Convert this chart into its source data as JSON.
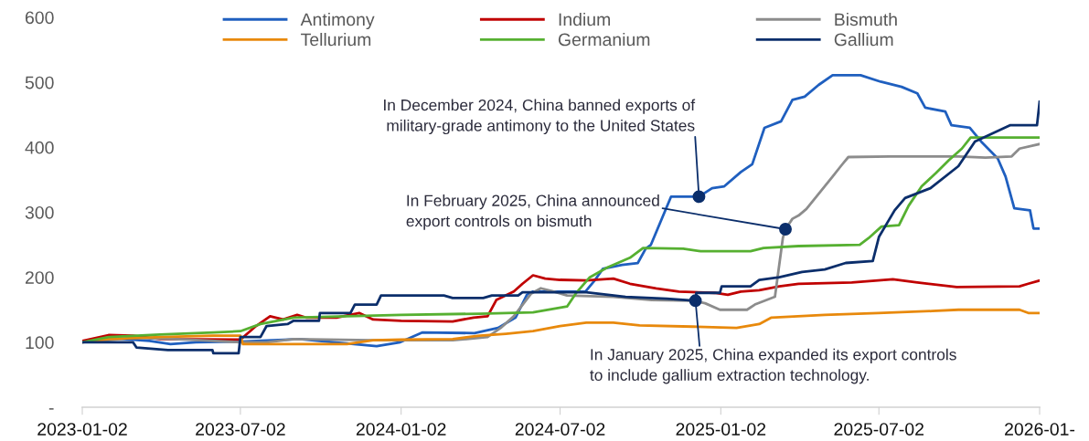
{
  "chart_data": {
    "type": "line",
    "ylim": [
      0,
      600
    ],
    "yticks": [
      {
        "value": 0,
        "label": "-"
      },
      100,
      200,
      300,
      400,
      500,
      600
    ],
    "xlim": [
      "2023-01-02",
      "2026-01-02"
    ],
    "xticks": [
      {
        "value": "2023-01-02",
        "label": "2023-01-02"
      },
      {
        "value": "2023-07-02",
        "label": "2023-07-02"
      },
      {
        "value": "2024-01-02",
        "label": "2024-01-02"
      },
      {
        "value": "2024-07-02",
        "label": "2024-07-02"
      },
      {
        "value": "2025-01-02",
        "label": "2025-01-02"
      },
      {
        "value": "2025-07-02",
        "label": "2025-07-02"
      },
      {
        "value": "2026-01-02",
        "label": "2026-01-"
      }
    ],
    "grid": false,
    "legend": "top",
    "marker": "none",
    "line_style": "solid",
    "series": [
      {
        "name": "Antimony",
        "color": "#1f5fbf",
        "x": [
          "2023-01-02",
          "2023-01-28",
          "2023-03-20",
          "2023-04-13",
          "2023-05-12",
          "2023-07-02",
          "2023-09-08",
          "2023-10-17",
          "2023-12-05",
          "2024-01-01",
          "2024-01-26",
          "2024-03-26",
          "2024-04-22",
          "2024-05-12",
          "2024-05-25",
          "2024-06-01",
          "2024-07-31",
          "2024-08-10",
          "2024-08-20",
          "2024-09-11",
          "2024-09-29",
          "2024-10-08",
          "2024-10-14",
          "2024-11-06",
          "2024-12-08",
          "2024-12-23",
          "2025-01-06",
          "2025-01-25",
          "2025-02-07",
          "2025-02-21",
          "2025-03-12",
          "2025-03-25",
          "2025-04-08",
          "2025-04-24",
          "2025-05-10",
          "2025-06-11",
          "2025-07-04",
          "2025-07-28",
          "2025-08-15",
          "2025-08-24",
          "2025-09-16",
          "2025-09-23",
          "2025-10-14",
          "2025-10-27",
          "2025-11-15",
          "2025-11-24",
          "2025-12-04",
          "2025-12-22",
          "2025-12-26",
          "2026-01-02"
        ],
        "values": [
          100,
          107,
          102,
          97,
          100,
          101,
          105,
          100,
          94,
          100,
          115,
          114,
          122,
          138,
          173,
          178,
          178,
          194,
          213,
          219,
          222,
          244,
          250,
          324,
          324,
          337,
          340,
          362,
          374,
          430,
          440,
          473,
          478,
          496,
          511,
          511,
          501,
          493,
          483,
          461,
          455,
          434,
          430,
          409,
          383,
          355,
          306,
          303,
          275,
          275
        ]
      },
      {
        "name": "Indium",
        "color": "#c00000",
        "x": [
          "2023-01-02",
          "2023-02-01",
          "2023-03-01",
          "2023-04-01",
          "2023-07-02",
          "2023-07-20",
          "2023-08-05",
          "2023-08-20",
          "2023-09-05",
          "2023-09-15",
          "2023-10-20",
          "2023-11-15",
          "2023-12-01",
          "2024-01-02",
          "2024-03-01",
          "2024-03-25",
          "2024-04-10",
          "2024-04-20",
          "2024-05-10",
          "2024-05-20",
          "2024-06-01",
          "2024-06-15",
          "2024-07-02",
          "2024-08-01",
          "2024-09-01",
          "2024-09-20",
          "2024-10-20",
          "2024-11-15",
          "2024-12-26",
          "2025-01-10",
          "2025-01-25",
          "2025-02-15",
          "2025-03-10",
          "2025-04-01",
          "2025-06-01",
          "2025-07-18",
          "2025-08-15",
          "2025-09-29",
          "2025-12-10",
          "2025-12-20",
          "2026-01-02"
        ],
        "values": [
          102,
          111,
          110,
          105,
          104,
          125,
          140,
          135,
          142,
          138,
          138,
          145,
          135,
          133,
          132,
          138,
          140,
          165,
          178,
          190,
          203,
          198,
          196,
          195,
          198,
          190,
          183,
          178,
          176,
          173,
          178,
          180,
          186,
          190,
          192,
          197,
          192,
          185,
          186,
          190,
          195
        ]
      },
      {
        "name": "Bismuth",
        "color": "#8c8c8c",
        "x": [
          "2023-01-02",
          "2023-02-01",
          "2023-03-01",
          "2023-05-01",
          "2023-07-02",
          "2023-08-01",
          "2023-09-01",
          "2023-12-01",
          "2024-03-01",
          "2024-04-10",
          "2024-04-25",
          "2024-05-10",
          "2024-05-30",
          "2024-06-10",
          "2024-06-25",
          "2024-07-10",
          "2024-09-01",
          "2024-10-15",
          "2024-12-01",
          "2024-12-15",
          "2025-01-01",
          "2025-02-01",
          "2025-02-10",
          "2025-03-05",
          "2025-03-14",
          "2025-03-17",
          "2025-03-25",
          "2025-04-01",
          "2025-04-10",
          "2025-04-25",
          "2025-05-10",
          "2025-05-20",
          "2025-05-28",
          "2025-07-15",
          "2025-10-01",
          "2025-11-01",
          "2025-12-01",
          "2025-12-10",
          "2026-01-02"
        ],
        "values": [
          100,
          103,
          107,
          104,
          100,
          100,
          105,
          103,
          103,
          108,
          122,
          140,
          175,
          183,
          178,
          172,
          170,
          165,
          164,
          160,
          150,
          150,
          158,
          170,
          260,
          274,
          290,
          295,
          305,
          330,
          355,
          372,
          385,
          386,
          386,
          384,
          386,
          398,
          405
        ]
      },
      {
        "name": "Tellurium",
        "color": "#e8890c",
        "x": [
          "2023-01-02",
          "2023-02-01",
          "2023-04-01",
          "2023-06-01",
          "2023-07-02",
          "2023-07-05",
          "2023-11-01",
          "2023-12-01",
          "2024-01-02",
          "2024-03-01",
          "2024-04-01",
          "2024-05-01",
          "2024-06-01",
          "2024-07-02",
          "2024-08-01",
          "2024-09-01",
          "2024-10-01",
          "2024-12-01",
          "2025-01-20",
          "2025-02-15",
          "2025-03-01",
          "2025-05-01",
          "2025-07-01",
          "2025-09-01",
          "2025-10-01",
          "2025-12-10",
          "2025-12-20",
          "2026-01-02"
        ],
        "values": [
          100,
          105,
          108,
          110,
          110,
          97,
          97,
          103,
          104,
          105,
          110,
          113,
          117,
          125,
          130,
          130,
          126,
          124,
          122,
          128,
          138,
          142,
          145,
          148,
          150,
          150,
          145,
          145
        ]
      },
      {
        "name": "Germanium",
        "color": "#56b031",
        "x": [
          "2023-01-02",
          "2023-02-01",
          "2023-04-01",
          "2023-06-01",
          "2023-07-02",
          "2023-07-25",
          "2023-09-01",
          "2023-11-01",
          "2024-01-02",
          "2024-04-01",
          "2024-06-01",
          "2024-07-10",
          "2024-07-20",
          "2024-08-05",
          "2024-08-25",
          "2024-09-20",
          "2024-10-05",
          "2024-11-20",
          "2024-12-10",
          "2025-02-05",
          "2025-02-20",
          "2025-04-01",
          "2025-06-10",
          "2025-06-20",
          "2025-07-05",
          "2025-07-25",
          "2025-08-05",
          "2025-08-20",
          "2025-09-05",
          "2025-09-20",
          "2025-10-05",
          "2025-10-15",
          "2026-01-02"
        ],
        "values": [
          100,
          108,
          112,
          115,
          117,
          128,
          138,
          140,
          142,
          144,
          146,
          155,
          175,
          200,
          215,
          230,
          245,
          244,
          240,
          240,
          245,
          248,
          250,
          260,
          278,
          280,
          310,
          340,
          360,
          380,
          398,
          415,
          415
        ]
      },
      {
        "name": "Gallium",
        "color": "#0b2e6b",
        "x": [
          "2023-01-02",
          "2023-03-01",
          "2023-03-05",
          "2023-04-10",
          "2023-05-31",
          "2023-06-01",
          "2023-06-30",
          "2023-07-02",
          "2023-07-25",
          "2023-08-01",
          "2023-08-25",
          "2023-09-01",
          "2023-09-30",
          "2023-10-01",
          "2023-11-05",
          "2023-11-10",
          "2023-12-05",
          "2023-12-10",
          "2024-02-20",
          "2024-03-01",
          "2024-04-05",
          "2024-04-15",
          "2024-05-15",
          "2024-05-20",
          "2024-08-01",
          "2024-09-15",
          "2024-11-01",
          "2024-12-04",
          "2024-12-05",
          "2025-01-01",
          "2025-01-03",
          "2025-02-05",
          "2025-02-15",
          "2025-03-10",
          "2025-04-05",
          "2025-05-01",
          "2025-05-25",
          "2025-06-25",
          "2025-07-02",
          "2025-07-20",
          "2025-08-01",
          "2025-08-30",
          "2025-10-01",
          "2025-10-20",
          "2025-11-29",
          "2025-12-30",
          "2026-01-02"
        ],
        "values": [
          100,
          100,
          92,
          88,
          88,
          83,
          83,
          108,
          108,
          125,
          128,
          133,
          133,
          145,
          145,
          158,
          158,
          172,
          172,
          168,
          168,
          172,
          172,
          177,
          177,
          170,
          167,
          164,
          176,
          176,
          186,
          186,
          196,
          200,
          208,
          212,
          222,
          225,
          262,
          303,
          322,
          337,
          371,
          409,
          434,
          434,
          470
        ]
      }
    ],
    "annotations": [
      {
        "text": "In December 2024, China banned exports of\nmilitary-grade antimony to the United States",
        "x": "2024-12-08",
        "y": 324
      },
      {
        "text": "In February 2025, China announced\nexport controls on bismuth",
        "x": "2025-03-17",
        "y": 274
      },
      {
        "text": "In January 2025, China expanded its export controls\nto include gallium extraction technology.",
        "x": "2024-12-04",
        "y": 164
      }
    ]
  }
}
